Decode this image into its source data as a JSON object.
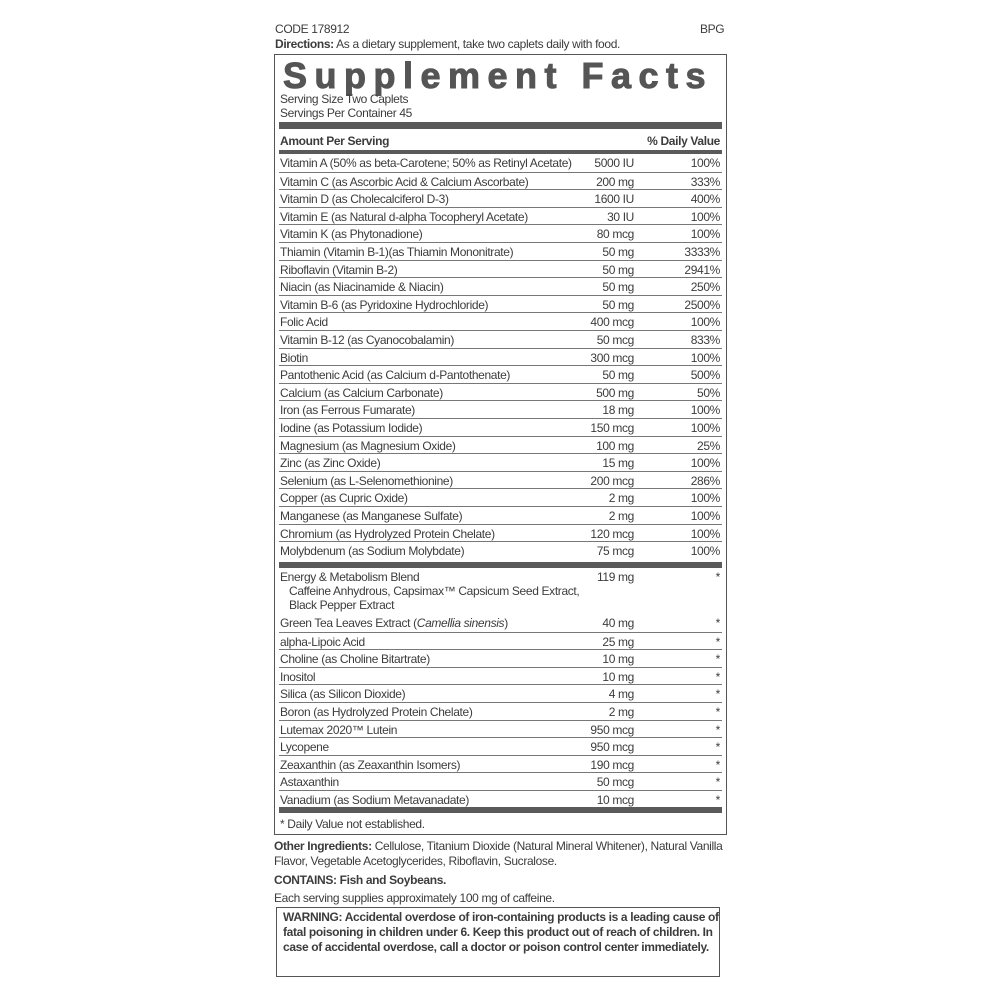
{
  "header": {
    "code": "CODE 178912",
    "brand": "BPG",
    "directions_label": "Directions:",
    "directions_text": " As a dietary supplement, take two caplets daily with food."
  },
  "facts": {
    "title": "Supplement Facts",
    "serving_size": "Serving Size Two Caplets",
    "servings_per_container": "Servings Per Container 45",
    "amount_header": "Amount Per Serving",
    "dv_header": "% Daily Value",
    "vitamins_minerals": [
      {
        "name": "Vitamin A (50% as beta-Carotene; 50% as Retinyl Acetate)",
        "amount": "5000 IU",
        "dv": "100%"
      },
      {
        "name": "Vitamin C (as Ascorbic Acid & Calcium Ascorbate)",
        "amount": "200 mg",
        "dv": "333%"
      },
      {
        "name": "Vitamin D (as Cholecalciferol D-3)",
        "amount": "1600 IU",
        "dv": "400%"
      },
      {
        "name": "Vitamin E (as Natural d-alpha Tocopheryl Acetate)",
        "amount": "30 IU",
        "dv": "100%"
      },
      {
        "name": "Vitamin K (as Phytonadione)",
        "amount": "80 mcg",
        "dv": "100%"
      },
      {
        "name": "Thiamin (Vitamin B-1)(as Thiamin Mononitrate)",
        "amount": "50 mg",
        "dv": "3333%"
      },
      {
        "name": "Riboflavin (Vitamin B-2)",
        "amount": "50 mg",
        "dv": "2941%"
      },
      {
        "name": "Niacin (as Niacinamide & Niacin)",
        "amount": "50 mg",
        "dv": "250%"
      },
      {
        "name": "Vitamin B-6 (as Pyridoxine Hydrochloride)",
        "amount": "50 mg",
        "dv": "2500%"
      },
      {
        "name": "Folic Acid",
        "amount": "400 mcg",
        "dv": "100%"
      },
      {
        "name": "Vitamin B-12 (as Cyanocobalamin)",
        "amount": "50 mcg",
        "dv": "833%"
      },
      {
        "name": "Biotin",
        "amount": "300 mcg",
        "dv": "100%"
      },
      {
        "name": "Pantothenic Acid (as Calcium d-Pantothenate)",
        "amount": "50 mg",
        "dv": "500%"
      },
      {
        "name": "Calcium (as Calcium Carbonate)",
        "amount": "500 mg",
        "dv": "50%"
      },
      {
        "name": "Iron (as Ferrous Fumarate)",
        "amount": "18 mg",
        "dv": "100%"
      },
      {
        "name": "Iodine (as Potassium Iodide)",
        "amount": "150 mcg",
        "dv": "100%"
      },
      {
        "name": "Magnesium (as Magnesium Oxide)",
        "amount": "100 mg",
        "dv": "25%"
      },
      {
        "name": "Zinc (as Zinc Oxide)",
        "amount": "15 mg",
        "dv": "100%"
      },
      {
        "name": "Selenium (as L-Selenomethionine)",
        "amount": "200 mcg",
        "dv": "286%"
      },
      {
        "name": "Copper (as Cupric Oxide)",
        "amount": "2 mg",
        "dv": "100%"
      },
      {
        "name": "Manganese (as Manganese Sulfate)",
        "amount": "2 mg",
        "dv": "100%"
      },
      {
        "name": "Chromium (as Hydrolyzed Protein Chelate)",
        "amount": "120 mcg",
        "dv": "100%"
      },
      {
        "name": "Molybdenum (as Sodium Molybdate)",
        "amount": "75 mcg",
        "dv": "100%"
      }
    ],
    "blend": {
      "name": "Energy & Metabolism Blend",
      "amount": "119 mg",
      "dv": "*",
      "sub1": "Caffeine Anhydrous, Capsimax™ Capsicum Seed Extract,",
      "sub2": "Black Pepper Extract"
    },
    "other_nutrients": [
      {
        "name": "Green Tea Leaves Extract (",
        "italic": "Camellia sinensis",
        "after": ")",
        "amount": "40 mg",
        "dv": "*"
      },
      {
        "name": "alpha-Lipoic Acid",
        "amount": "25 mg",
        "dv": "*"
      },
      {
        "name": "Choline (as Choline Bitartrate)",
        "amount": "10 mg",
        "dv": "*"
      },
      {
        "name": "Inositol",
        "amount": "10 mg",
        "dv": "*"
      },
      {
        "name": "Silica (as Silicon Dioxide)",
        "amount": "4 mg",
        "dv": "*"
      },
      {
        "name": "Boron (as Hydrolyzed Protein Chelate)",
        "amount": "2 mg",
        "dv": "*"
      },
      {
        "name": "Lutemax 2020™ Lutein",
        "amount": "950 mcg",
        "dv": "*"
      },
      {
        "name": "Lycopene",
        "amount": "950 mcg",
        "dv": "*"
      },
      {
        "name": "Zeaxanthin (as Zeaxanthin Isomers)",
        "amount": "190 mcg",
        "dv": "*"
      },
      {
        "name": "Astaxanthin",
        "amount": "50 mcg",
        "dv": "*"
      },
      {
        "name": "Vanadium (as Sodium Metavanadate)",
        "amount": "10 mcg",
        "dv": "*"
      }
    ],
    "footnote": "* Daily Value not established."
  },
  "other_ingredients": {
    "label": "Other Ingredients:",
    "text": " Cellulose, Titanium Dioxide (Natural Mineral Whitener), Natural Vanilla Flavor, Vegetable Acetoglycerides, Riboflavin, Sucralose."
  },
  "contains": "CONTAINS: Fish and Soybeans.",
  "caffeine_note": "Each serving supplies approximately 100 mg of caffeine.",
  "warning": "WARNING: Accidental overdose of iron-containing products is a leading cause of fatal poisoning in children under 6. Keep this product out of reach of children. In case of accidental overdose, call a doctor or poison control center immediately."
}
